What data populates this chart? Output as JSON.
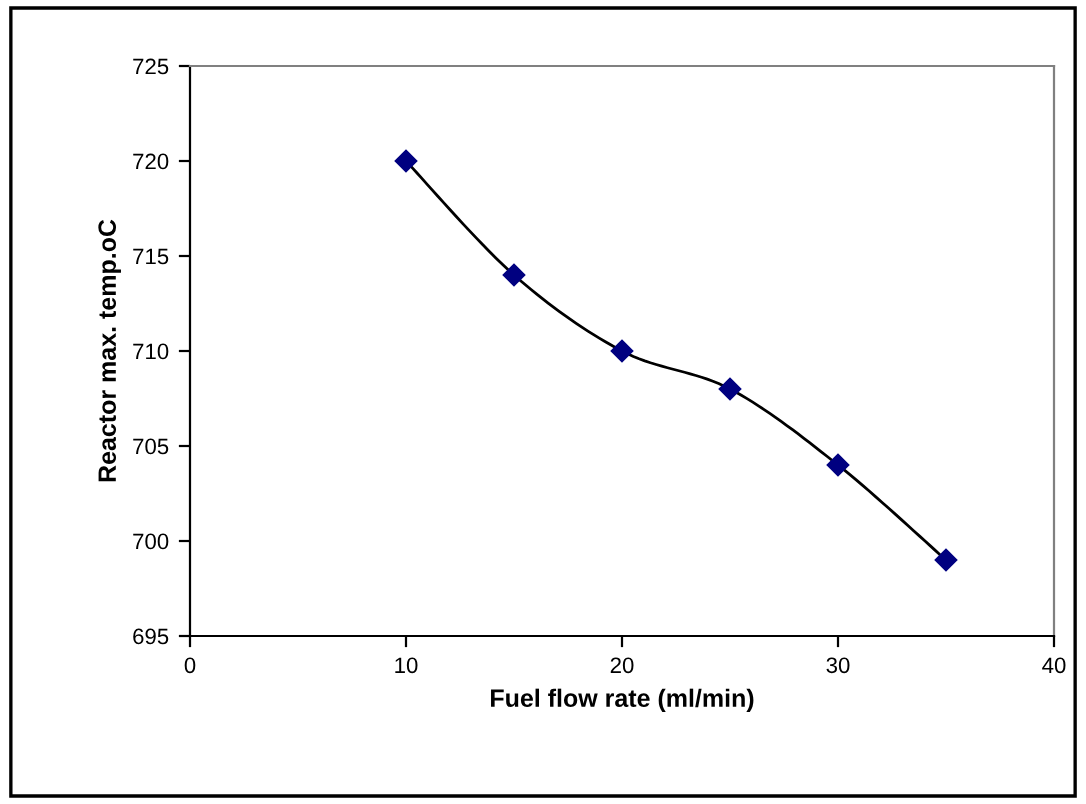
{
  "chart_data": {
    "type": "line",
    "xlabel": "Fuel flow rate (ml/min)",
    "ylabel": "Reactor max. temp.oC",
    "x": [
      10,
      15,
      20,
      25,
      30,
      35
    ],
    "series": [
      {
        "color": "#000080",
        "values": [
          720,
          714,
          710,
          708,
          704,
          699
        ]
      }
    ],
    "marker": "diamond",
    "line_style": "solid",
    "xlim": [
      0,
      40
    ],
    "xticks": [
      0,
      10,
      20,
      30,
      40
    ],
    "ylim": [
      695,
      725
    ],
    "yticks": [
      695,
      700,
      705,
      710,
      715,
      720,
      725
    ],
    "grid": false,
    "legend": false
  }
}
